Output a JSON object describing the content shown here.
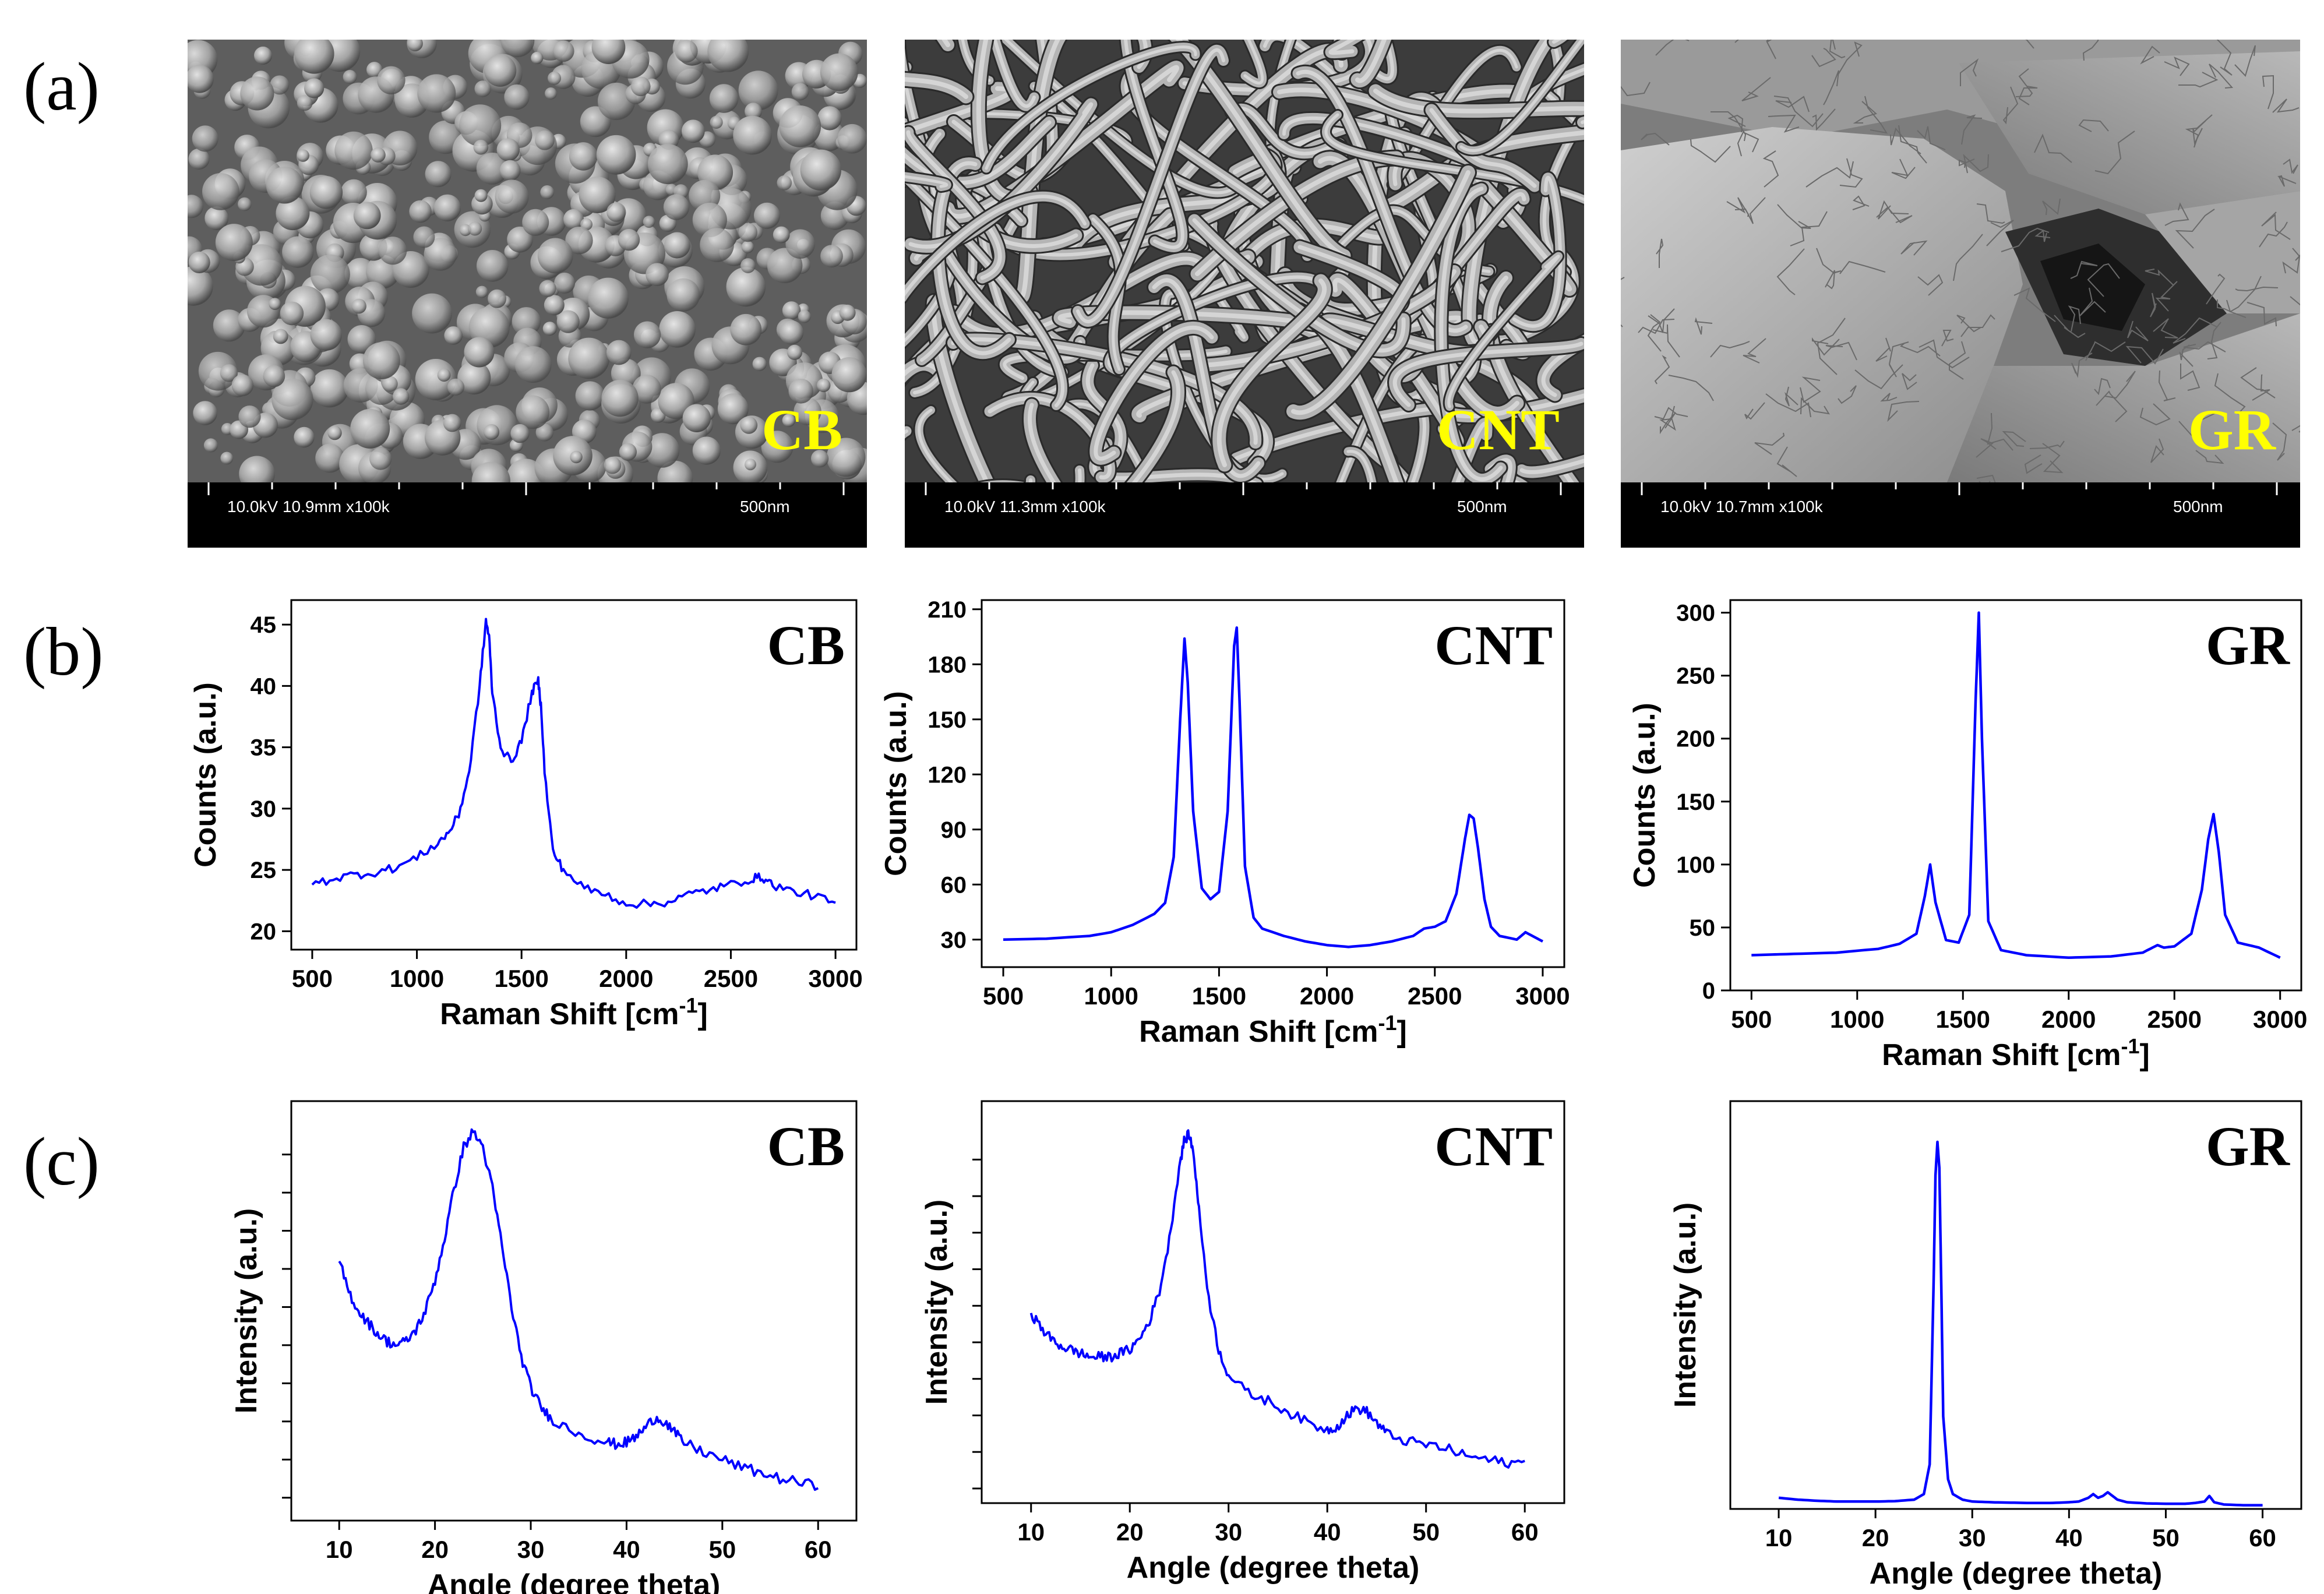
{
  "panels": {
    "a": "(a)",
    "b": "(b)",
    "c": "(c)"
  },
  "sem": [
    {
      "label": "CB",
      "meta": "10.0kV 10.9mm x100k",
      "scale": "500nm"
    },
    {
      "label": "CNT",
      "meta": "10.0kV 11.3mm x100k",
      "scale": "500nm"
    },
    {
      "label": "GR",
      "meta": "10.0kV 10.7mm x100k",
      "scale": "500nm"
    }
  ],
  "colors": {
    "line": "#0000ff",
    "sem_label": "#ffff00"
  },
  "chart_data": [
    {
      "id": "raman-cb",
      "type": "line",
      "label": "CB",
      "xlabel": "Raman Shift [cm",
      "xlabel_sup": "-1",
      "xlabel_end": "]",
      "ylabel": "Counts (a.u.)",
      "xlim": [
        400,
        3100
      ],
      "ylim": [
        18.5,
        47
      ],
      "xticks": [
        500,
        1000,
        1500,
        2000,
        2500,
        3000
      ],
      "yticks": [
        20,
        25,
        30,
        35,
        40,
        45
      ],
      "x": [
        500,
        600,
        700,
        800,
        900,
        1000,
        1100,
        1150,
        1200,
        1250,
        1300,
        1330,
        1345,
        1360,
        1400,
        1450,
        1500,
        1550,
        1580,
        1595,
        1610,
        1650,
        1700,
        1800,
        1900,
        2000,
        2100,
        2200,
        2300,
        2400,
        2500,
        2600,
        2650,
        2700,
        2800,
        2900,
        3000
      ],
      "y": [
        23.8,
        24.3,
        24.6,
        24.8,
        25.2,
        26.0,
        27.2,
        28.0,
        29.5,
        33.0,
        40.0,
        45.3,
        44.0,
        39.5,
        35.0,
        33.8,
        35.5,
        39.5,
        40.4,
        38.0,
        33.0,
        26.5,
        25.0,
        23.5,
        23.0,
        22.3,
        22.2,
        22.4,
        23.0,
        23.4,
        23.8,
        24.3,
        24.4,
        23.8,
        23.2,
        22.9,
        22.2
      ]
    },
    {
      "id": "raman-cnt",
      "type": "line",
      "label": "CNT",
      "xlabel": "Raman Shift [cm",
      "xlabel_sup": "-1",
      "xlabel_end": "]",
      "ylabel": "Counts (a.u.)",
      "xlim": [
        400,
        3100
      ],
      "ylim": [
        15,
        215
      ],
      "xticks": [
        500,
        1000,
        1500,
        2000,
        2500,
        3000
      ],
      "yticks": [
        30,
        60,
        90,
        120,
        150,
        180,
        210
      ],
      "x": [
        500,
        700,
        900,
        1000,
        1100,
        1200,
        1250,
        1290,
        1320,
        1340,
        1355,
        1380,
        1420,
        1460,
        1500,
        1540,
        1570,
        1582,
        1595,
        1620,
        1660,
        1700,
        1800,
        1900,
        2000,
        2100,
        2200,
        2300,
        2400,
        2450,
        2500,
        2550,
        2600,
        2640,
        2660,
        2680,
        2700,
        2730,
        2760,
        2800,
        2880,
        2920,
        3000
      ],
      "y": [
        30,
        30.5,
        32,
        34,
        38,
        44,
        50,
        75,
        150,
        194,
        170,
        100,
        58,
        52,
        56,
        100,
        190,
        200,
        160,
        70,
        42,
        36,
        32,
        29,
        27,
        26,
        27,
        29,
        32,
        36,
        37,
        40,
        55,
        85,
        98,
        96,
        80,
        52,
        37,
        32,
        30,
        34,
        29
      ]
    },
    {
      "id": "raman-gr",
      "type": "line",
      "label": "GR",
      "xlabel": "Raman Shift [cm",
      "xlabel_sup": "-1",
      "xlabel_end": "]",
      "ylabel": "Counts (a.u.)",
      "xlim": [
        400,
        3100
      ],
      "ylim": [
        0,
        310
      ],
      "xticks": [
        500,
        1000,
        1500,
        2000,
        2500,
        3000
      ],
      "yticks": [
        0,
        50,
        100,
        150,
        200,
        250,
        300
      ],
      "x": [
        500,
        700,
        900,
        1100,
        1200,
        1280,
        1320,
        1345,
        1370,
        1420,
        1480,
        1530,
        1560,
        1575,
        1590,
        1620,
        1680,
        1800,
        2000,
        2200,
        2350,
        2420,
        2450,
        2500,
        2580,
        2630,
        2660,
        2685,
        2710,
        2740,
        2800,
        2900,
        3000
      ],
      "y": [
        28,
        29,
        30,
        33,
        37,
        45,
        75,
        100,
        70,
        40,
        38,
        60,
        230,
        300,
        200,
        55,
        32,
        28,
        26,
        27,
        30,
        36,
        34,
        35,
        45,
        80,
        120,
        140,
        110,
        60,
        38,
        34,
        26
      ]
    },
    {
      "id": "xrd-cb",
      "type": "line",
      "label": "CB",
      "xlabel": "Angle (degree theta)",
      "ylabel": "Intensity (a.u.)",
      "xlim": [
        5,
        64
      ],
      "ylim": [
        0,
        1.1
      ],
      "xticks": [
        10,
        20,
        30,
        40,
        50,
        60
      ],
      "yticks": [
        0.06,
        0.16,
        0.26,
        0.36,
        0.46,
        0.56,
        0.66,
        0.76,
        0.86,
        0.96
      ],
      "x": [
        10,
        11,
        12,
        13,
        14,
        15,
        16,
        17,
        18,
        19,
        20,
        21,
        22,
        23,
        24,
        25,
        26,
        27,
        28,
        29,
        30,
        31,
        32,
        34,
        36,
        38,
        39,
        40,
        41,
        42,
        43,
        44,
        45,
        46,
        48,
        50,
        52,
        54,
        56,
        58,
        60
      ],
      "y": [
        0.68,
        0.6,
        0.55,
        0.52,
        0.49,
        0.47,
        0.46,
        0.47,
        0.5,
        0.55,
        0.63,
        0.74,
        0.87,
        0.98,
        1.02,
        0.98,
        0.87,
        0.72,
        0.56,
        0.43,
        0.35,
        0.3,
        0.27,
        0.24,
        0.22,
        0.205,
        0.2,
        0.205,
        0.22,
        0.245,
        0.27,
        0.26,
        0.23,
        0.205,
        0.18,
        0.16,
        0.14,
        0.125,
        0.11,
        0.1,
        0.09
      ]
    },
    {
      "id": "xrd-cnt",
      "type": "line",
      "label": "CNT",
      "xlabel": "Angle (degree theta)",
      "ylabel": "Intensity (a.u.)",
      "xlim": [
        5,
        64
      ],
      "ylim": [
        0,
        1.1
      ],
      "xticks": [
        10,
        20,
        30,
        40,
        50,
        60
      ],
      "yticks": [
        0.04,
        0.14,
        0.24,
        0.34,
        0.44,
        0.54,
        0.64,
        0.74,
        0.84,
        0.94
      ],
      "x": [
        10,
        11,
        12,
        13,
        14,
        15,
        16,
        17,
        18,
        19,
        20,
        21,
        22,
        23,
        24,
        25,
        25.5,
        26,
        26.5,
        27,
        28,
        29,
        30,
        32,
        34,
        36,
        38,
        40,
        41,
        42,
        43,
        44,
        45,
        46,
        48,
        50,
        52,
        54,
        56,
        58,
        60
      ],
      "y": [
        0.52,
        0.48,
        0.45,
        0.43,
        0.42,
        0.41,
        0.4,
        0.4,
        0.4,
        0.41,
        0.42,
        0.45,
        0.5,
        0.58,
        0.72,
        0.92,
        0.99,
        1.01,
        0.95,
        0.8,
        0.56,
        0.42,
        0.35,
        0.3,
        0.28,
        0.25,
        0.22,
        0.2,
        0.21,
        0.24,
        0.26,
        0.25,
        0.22,
        0.19,
        0.17,
        0.16,
        0.15,
        0.13,
        0.12,
        0.11,
        0.11
      ]
    },
    {
      "id": "xrd-gr",
      "type": "line",
      "label": "GR",
      "xlabel": "Angle (degree theta)",
      "ylabel": "Intensity (a.u.)",
      "xlim": [
        5,
        64
      ],
      "ylim": [
        0,
        1.1
      ],
      "xticks": [
        10,
        20,
        30,
        40,
        50,
        60
      ],
      "yticks": [],
      "x": [
        10,
        12,
        14,
        16,
        18,
        20,
        22,
        24,
        25,
        25.6,
        26,
        26.2,
        26.4,
        26.6,
        26.8,
        27,
        27.5,
        28,
        29,
        30,
        32,
        34,
        36,
        38,
        40,
        41,
        42,
        42.5,
        43,
        43.5,
        44,
        44.5,
        45,
        46,
        48,
        50,
        52,
        53,
        54,
        54.5,
        55,
        56,
        58,
        60
      ],
      "y": [
        0.03,
        0.025,
        0.022,
        0.02,
        0.02,
        0.02,
        0.021,
        0.025,
        0.04,
        0.12,
        0.6,
        0.9,
        0.99,
        0.92,
        0.6,
        0.25,
        0.08,
        0.04,
        0.025,
        0.02,
        0.018,
        0.017,
        0.016,
        0.016,
        0.018,
        0.02,
        0.03,
        0.04,
        0.03,
        0.035,
        0.045,
        0.035,
        0.025,
        0.018,
        0.015,
        0.014,
        0.014,
        0.016,
        0.02,
        0.035,
        0.018,
        0.012,
        0.01,
        0.01
      ]
    }
  ]
}
